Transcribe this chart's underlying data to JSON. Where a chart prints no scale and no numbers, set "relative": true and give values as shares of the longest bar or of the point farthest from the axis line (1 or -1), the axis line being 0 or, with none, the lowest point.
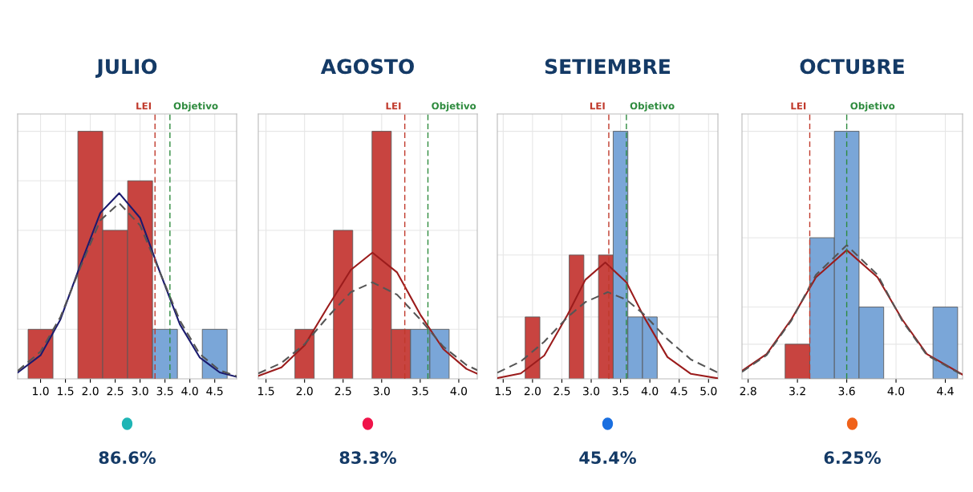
{
  "chart_data": [
    {
      "type": "histogram",
      "title": "JULIO",
      "relative": true,
      "grid": true,
      "bins": [
        0.75,
        1.25,
        1.75,
        2.25,
        2.75,
        3.25,
        3.75,
        4.25,
        4.75
      ],
      "values": [
        0.2,
        0,
        1,
        0.6,
        0.8,
        0.2,
        0,
        0.2
      ],
      "colors": [
        "#c84440",
        "#c84440",
        "#c84440",
        "#c84440",
        "#c84440",
        "#7aa6d8",
        "#7aa6d8",
        "#7aa6d8"
      ],
      "series": [
        {
          "type": "line",
          "color": "#1a1a6e",
          "line_style": "solid",
          "x": [
            0.54,
            1.0,
            1.4,
            1.8,
            2.2,
            2.58,
            3.0,
            3.4,
            3.8,
            4.2,
            4.6,
            4.94
          ],
          "values": [
            0.025,
            0.095,
            0.24,
            0.46,
            0.67,
            0.75,
            0.65,
            0.43,
            0.22,
            0.086,
            0.026,
            0.008
          ]
        },
        {
          "type": "line",
          "color": "#555555",
          "line_style": "dashed",
          "x": [
            0.54,
            1.0,
            1.4,
            1.8,
            2.2,
            2.58,
            3.0,
            3.4,
            3.8,
            4.2,
            4.6,
            4.94
          ],
          "values": [
            0.032,
            0.11,
            0.25,
            0.45,
            0.64,
            0.71,
            0.62,
            0.43,
            0.235,
            0.1,
            0.034,
            0.011
          ]
        }
      ],
      "ref_lines": [
        {
          "axis": "x",
          "value": 3.3,
          "label": "LEI",
          "color": "#c0392b",
          "line_style": "dashed"
        },
        {
          "axis": "x",
          "value": 3.6,
          "label": "Objetivo",
          "color": "#2e8b3e",
          "line_style": "dashed"
        }
      ],
      "xlim": [
        0.54,
        4.94
      ],
      "xticks": [
        {
          "value": 1,
          "label": "1.0"
        },
        {
          "value": 1.5,
          "label": "1.5"
        },
        {
          "value": 2,
          "label": "2.0"
        },
        {
          "value": 2.5,
          "label": "2.5"
        },
        {
          "value": 3,
          "label": "3.0"
        },
        {
          "value": 3.5,
          "label": "3.5"
        },
        {
          "value": 4,
          "label": "4.0"
        },
        {
          "value": 4.5,
          "label": "4.5"
        }
      ],
      "annotations": [
        "86.6%"
      ]
    },
    {
      "type": "histogram",
      "title": "AGOSTO",
      "relative": true,
      "grid": true,
      "bins": [
        1.875,
        2.125,
        2.375,
        2.625,
        2.875,
        3.125,
        3.375,
        3.625,
        3.875
      ],
      "values": [
        0.2,
        0,
        0.6,
        0,
        1,
        0.2,
        0.2,
        0.2
      ],
      "colors": [
        "#c84440",
        "#c84440",
        "#c84440",
        "#c84440",
        "#c84440",
        "#c84440",
        "#7aa6d8",
        "#7aa6d8"
      ],
      "series": [
        {
          "type": "line",
          "color": "#9b1c1c",
          "line_style": "solid",
          "x": [
            1.4,
            1.7,
            2.0,
            2.3,
            2.6,
            2.88,
            3.2,
            3.5,
            3.8,
            4.1,
            4.24
          ],
          "values": [
            0.012,
            0.046,
            0.135,
            0.29,
            0.44,
            0.51,
            0.43,
            0.26,
            0.12,
            0.04,
            0.021
          ]
        },
        {
          "type": "line",
          "color": "#555555",
          "line_style": "dashed",
          "x": [
            1.4,
            1.7,
            2.0,
            2.3,
            2.6,
            2.88,
            3.2,
            3.5,
            3.8,
            4.1,
            4.24
          ],
          "values": [
            0.022,
            0.064,
            0.14,
            0.25,
            0.35,
            0.39,
            0.34,
            0.24,
            0.13,
            0.056,
            0.035
          ]
        }
      ],
      "ref_lines": [
        {
          "axis": "x",
          "value": 3.3,
          "label": "LEI",
          "color": "#c0392b",
          "line_style": "dashed"
        },
        {
          "axis": "x",
          "value": 3.6,
          "label": "Objetivo",
          "color": "#2e8b3e",
          "line_style": "dashed"
        }
      ],
      "xlim": [
        1.4,
        4.24
      ],
      "xticks": [
        {
          "value": 1.5,
          "label": "1.5"
        },
        {
          "value": 2,
          "label": "2.0"
        },
        {
          "value": 2.5,
          "label": "2.5"
        },
        {
          "value": 3,
          "label": "3.0"
        },
        {
          "value": 3.5,
          "label": "3.5"
        },
        {
          "value": 4,
          "label": "4.0"
        }
      ],
      "annotations": [
        "83.3%"
      ]
    },
    {
      "type": "histogram",
      "title": "SETIEMBRE",
      "relative": true,
      "grid": true,
      "bins": [
        1.875,
        2.125,
        2.375,
        2.625,
        2.875,
        3.125,
        3.375,
        3.625,
        3.875,
        4.125
      ],
      "values": [
        0.25,
        0,
        0,
        0.5,
        0,
        0.5,
        1,
        0.25,
        0.25
      ],
      "colors": [
        "#c84440",
        "#c84440",
        "#c84440",
        "#c84440",
        "#c84440",
        "#c84440",
        "#7aa6d8",
        "#7aa6d8",
        "#7aa6d8"
      ],
      "series": [
        {
          "type": "line",
          "color": "#9b1c1c",
          "line_style": "solid",
          "x": [
            1.4,
            1.8,
            2.2,
            2.6,
            2.9,
            3.24,
            3.6,
            3.9,
            4.3,
            4.7,
            5.16
          ],
          "values": [
            0.003,
            0.022,
            0.094,
            0.26,
            0.4,
            0.47,
            0.39,
            0.25,
            0.088,
            0.02,
            0.002
          ]
        },
        {
          "type": "line",
          "color": "#555555",
          "line_style": "dashed",
          "x": [
            1.4,
            1.8,
            2.2,
            2.6,
            2.9,
            3.28,
            3.6,
            3.9,
            4.3,
            4.7,
            5.16
          ],
          "values": [
            0.025,
            0.07,
            0.15,
            0.25,
            0.31,
            0.35,
            0.32,
            0.26,
            0.16,
            0.078,
            0.025
          ]
        }
      ],
      "ref_lines": [
        {
          "axis": "x",
          "value": 3.3,
          "label": "LEI",
          "color": "#c0392b",
          "line_style": "dashed"
        },
        {
          "axis": "x",
          "value": 3.6,
          "label": "Objetivo",
          "color": "#2e8b3e",
          "line_style": "dashed"
        }
      ],
      "xlim": [
        1.4,
        5.16
      ],
      "xticks": [
        {
          "value": 1.5,
          "label": "1.5"
        },
        {
          "value": 2,
          "label": "2.0"
        },
        {
          "value": 2.5,
          "label": "2.5"
        },
        {
          "value": 3,
          "label": "3.0"
        },
        {
          "value": 3.5,
          "label": "3.5"
        },
        {
          "value": 4,
          "label": "4.0"
        },
        {
          "value": 4.5,
          "label": "4.5"
        },
        {
          "value": 5,
          "label": "5.0"
        }
      ],
      "annotations": [
        "45.4%"
      ]
    },
    {
      "type": "histogram",
      "title": "OCTUBRE",
      "relative": true,
      "grid": true,
      "bins": [
        3.1,
        3.3,
        3.5,
        3.7,
        3.9,
        4.1,
        4.3,
        4.5
      ],
      "values": [
        0.14,
        0.57,
        1,
        0.29,
        0,
        0,
        0.29
      ],
      "colors": [
        "#c84440",
        "#7aa6d8",
        "#7aa6d8",
        "#7aa6d8",
        "#7aa6d8",
        "#7aa6d8",
        "#7aa6d8"
      ],
      "series": [
        {
          "type": "line",
          "color": "#9b1c1c",
          "line_style": "solid",
          "x": [
            2.75,
            2.95,
            3.15,
            3.35,
            3.6,
            3.85,
            4.05,
            4.25,
            4.54
          ],
          "values": [
            0.032,
            0.1,
            0.24,
            0.41,
            0.52,
            0.41,
            0.24,
            0.1,
            0.017
          ]
        },
        {
          "type": "line",
          "color": "#555555",
          "line_style": "dashed",
          "x": [
            2.75,
            2.95,
            3.15,
            3.35,
            3.6,
            3.85,
            4.05,
            4.25,
            4.54
          ],
          "values": [
            0.028,
            0.096,
            0.235,
            0.42,
            0.54,
            0.42,
            0.235,
            0.096,
            0.015
          ]
        }
      ],
      "ref_lines": [
        {
          "axis": "x",
          "value": 3.3,
          "label": "LEI",
          "color": "#c0392b",
          "line_style": "dashed"
        },
        {
          "axis": "x",
          "value": 3.6,
          "label": "Objetivo",
          "color": "#2e8b3e",
          "line_style": "dashed"
        }
      ],
      "xlim": [
        2.75,
        4.54
      ],
      "xticks": [
        {
          "value": 2.8,
          "label": "2.8"
        },
        {
          "value": 3.2,
          "label": "3.2"
        },
        {
          "value": 3.6,
          "label": "3.6"
        },
        {
          "value": 4.0,
          "label": "4.0"
        },
        {
          "value": 4.4,
          "label": "4.4"
        }
      ],
      "annotations": [
        "6.25%"
      ]
    }
  ]
}
